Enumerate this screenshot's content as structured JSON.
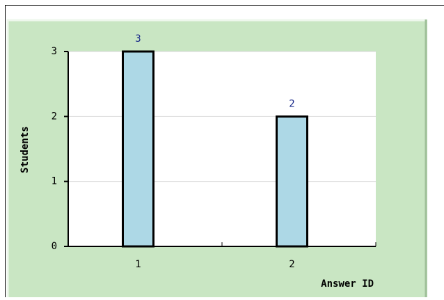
{
  "chart_data": {
    "type": "bar",
    "categories": [
      "1",
      "2"
    ],
    "values": [
      3,
      2
    ],
    "color": "#add8e6",
    "ylim": [
      0,
      3
    ],
    "yticks": [
      0,
      1,
      2,
      3
    ],
    "grid": true,
    "xlabel": "Answer ID",
    "ylabel": "Students",
    "value_label_color": "#1a2a8a"
  }
}
